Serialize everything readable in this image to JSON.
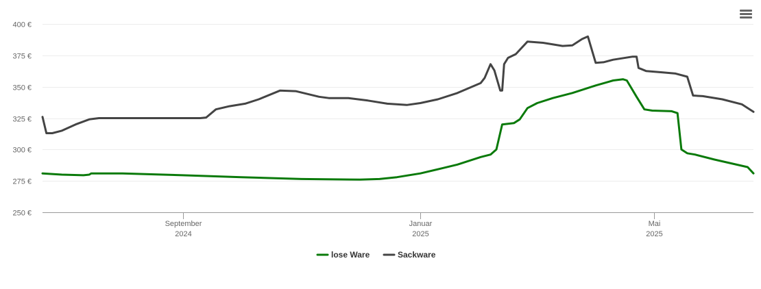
{
  "chart_data": {
    "type": "line",
    "title": "",
    "xlabel": "",
    "ylabel": "",
    "ylim": [
      250,
      400
    ],
    "y_ticks": [
      "250 €",
      "275 €",
      "300 €",
      "325 €",
      "350 €",
      "375 €",
      "400 €"
    ],
    "y_tick_values": [
      250,
      275,
      300,
      325,
      350,
      375,
      400
    ],
    "x_range": [
      "2024-06-21",
      "2025-06-21"
    ],
    "x_ticks": [
      {
        "date": "2024-09-01",
        "line1": "September",
        "line2": "2024"
      },
      {
        "date": "2025-01-01",
        "line1": "Januar",
        "line2": "2025"
      },
      {
        "date": "2025-05-01",
        "line1": "Mai",
        "line2": "2025"
      }
    ],
    "grid": true,
    "legend_position": "bottom-center",
    "series": [
      {
        "name": "lose Ware",
        "color": "#0a7a0a",
        "points": [
          [
            "2024-06-21",
            281
          ],
          [
            "2024-07-01",
            280
          ],
          [
            "2024-07-12",
            279.5
          ],
          [
            "2024-07-15",
            280
          ],
          [
            "2024-07-16",
            281
          ],
          [
            "2024-08-01",
            281
          ],
          [
            "2024-09-01",
            279.5
          ],
          [
            "2024-10-01",
            278
          ],
          [
            "2024-11-01",
            276.5
          ],
          [
            "2024-12-01",
            276
          ],
          [
            "2024-12-11",
            276.5
          ],
          [
            "2024-12-20",
            278
          ],
          [
            "2025-01-01",
            281
          ],
          [
            "2025-01-12",
            285
          ],
          [
            "2025-01-20",
            288
          ],
          [
            "2025-02-01",
            294
          ],
          [
            "2025-02-06",
            296
          ],
          [
            "2025-02-09",
            300
          ],
          [
            "2025-02-12",
            320
          ],
          [
            "2025-02-18",
            321
          ],
          [
            "2025-02-21",
            324
          ],
          [
            "2025-02-25",
            333
          ],
          [
            "2025-03-02",
            337
          ],
          [
            "2025-03-10",
            341
          ],
          [
            "2025-03-20",
            345
          ],
          [
            "2025-04-01",
            351
          ],
          [
            "2025-04-10",
            355
          ],
          [
            "2025-04-15",
            356
          ],
          [
            "2025-04-17",
            355
          ],
          [
            "2025-04-22",
            342
          ],
          [
            "2025-04-26",
            332
          ],
          [
            "2025-04-30",
            331
          ],
          [
            "2025-05-10",
            330.5
          ],
          [
            "2025-05-13",
            329
          ],
          [
            "2025-05-15",
            300
          ],
          [
            "2025-05-18",
            297
          ],
          [
            "2025-05-22",
            296
          ],
          [
            "2025-06-01",
            292
          ],
          [
            "2025-06-18",
            286
          ],
          [
            "2025-06-21",
            281
          ]
        ]
      },
      {
        "name": "Sackware",
        "color": "#444444",
        "points": [
          [
            "2024-06-21",
            326
          ],
          [
            "2024-06-23",
            313
          ],
          [
            "2024-06-26",
            313
          ],
          [
            "2024-07-01",
            315
          ],
          [
            "2024-07-08",
            320
          ],
          [
            "2024-07-15",
            324
          ],
          [
            "2024-07-20",
            325
          ],
          [
            "2024-08-01",
            325
          ],
          [
            "2024-09-01",
            325
          ],
          [
            "2024-09-10",
            325
          ],
          [
            "2024-09-13",
            325.5
          ],
          [
            "2024-09-18",
            332
          ],
          [
            "2024-09-25",
            334.5
          ],
          [
            "2024-10-03",
            336.5
          ],
          [
            "2024-10-10",
            340
          ],
          [
            "2024-10-21",
            347
          ],
          [
            "2024-10-29",
            346.5
          ],
          [
            "2024-11-10",
            342
          ],
          [
            "2024-11-15",
            341
          ],
          [
            "2024-11-25",
            341
          ],
          [
            "2024-12-05",
            339
          ],
          [
            "2024-12-15",
            336.5
          ],
          [
            "2024-12-25",
            335.5
          ],
          [
            "2025-01-01",
            337
          ],
          [
            "2025-01-10",
            340
          ],
          [
            "2025-01-20",
            345
          ],
          [
            "2025-02-01",
            353
          ],
          [
            "2025-02-03",
            357
          ],
          [
            "2025-02-06",
            368
          ],
          [
            "2025-02-08",
            363
          ],
          [
            "2025-02-11",
            347
          ],
          [
            "2025-02-12",
            347
          ],
          [
            "2025-02-13",
            368
          ],
          [
            "2025-02-15",
            373
          ],
          [
            "2025-02-19",
            376
          ],
          [
            "2025-02-25",
            386
          ],
          [
            "2025-03-05",
            385
          ],
          [
            "2025-03-15",
            382.5
          ],
          [
            "2025-03-20",
            383
          ],
          [
            "2025-03-25",
            388
          ],
          [
            "2025-03-28",
            390
          ],
          [
            "2025-04-01",
            369
          ],
          [
            "2025-04-05",
            369.5
          ],
          [
            "2025-04-10",
            371.5
          ],
          [
            "2025-04-20",
            374
          ],
          [
            "2025-04-22",
            374
          ],
          [
            "2025-04-23",
            365
          ],
          [
            "2025-04-27",
            362.5
          ],
          [
            "2025-05-05",
            361.5
          ],
          [
            "2025-05-12",
            360.5
          ],
          [
            "2025-05-18",
            358
          ],
          [
            "2025-05-21",
            343
          ],
          [
            "2025-05-26",
            342.5
          ],
          [
            "2025-06-05",
            340
          ],
          [
            "2025-06-15",
            336
          ],
          [
            "2025-06-21",
            330
          ]
        ]
      }
    ]
  },
  "menu": {
    "icon": "hamburger-menu-icon"
  }
}
